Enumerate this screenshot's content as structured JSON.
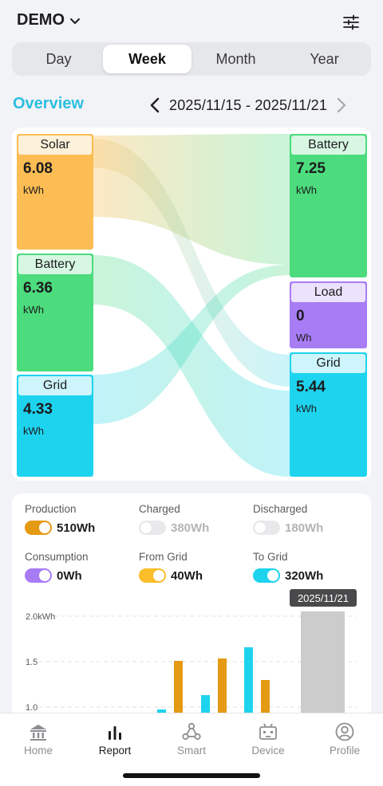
{
  "header": {
    "site_name": "DEMO",
    "site_dropdown_icon": "chevron-down-icon",
    "settings_icon": "sliders-icon"
  },
  "tabs": [
    {
      "label": "Day",
      "active": false
    },
    {
      "label": "Week",
      "active": true
    },
    {
      "label": "Month",
      "active": false
    },
    {
      "label": "Year",
      "active": false
    }
  ],
  "overview": {
    "title": "Overview",
    "date_range": "2025/11/15 - 2025/11/21",
    "prev_icon": "chevron-left-icon",
    "next_icon": "chevron-right-icon"
  },
  "sankey": {
    "sources": [
      {
        "label": "Solar",
        "value": "6.08",
        "unit": "kWh",
        "color": "#fbbd54"
      },
      {
        "label": "Battery",
        "value": "6.36",
        "unit": "kWh",
        "color": "#4cdb7d"
      },
      {
        "label": "Grid",
        "value": "4.33",
        "unit": "kWh",
        "color": "#1ed3ee"
      }
    ],
    "targets": [
      {
        "label": "Battery",
        "value": "7.25",
        "unit": "kWh",
        "color": "#4cdb7d"
      },
      {
        "label": "Load",
        "value": "0",
        "unit": "Wh",
        "color": "#a87cf5"
      },
      {
        "label": "Grid",
        "value": "5.44",
        "unit": "kWh",
        "color": "#1ed3ee"
      }
    ]
  },
  "stats": [
    {
      "name": "Production",
      "value": "510Wh",
      "enabled": true,
      "color": "#e59a14"
    },
    {
      "name": "Charged",
      "value": "380Wh",
      "enabled": false,
      "color": "#e9e9eb"
    },
    {
      "name": "Discharged",
      "value": "180Wh",
      "enabled": false,
      "color": "#e9e9eb"
    },
    {
      "name": "Consumption",
      "value": "0Wh",
      "enabled": true,
      "color": "#a87cf5"
    },
    {
      "name": "From Grid",
      "value": "40Wh",
      "enabled": true,
      "color": "#fbbd2a"
    },
    {
      "name": "To Grid",
      "value": "320Wh",
      "enabled": true,
      "color": "#1ed3ee"
    }
  ],
  "chart_data": {
    "type": "bar",
    "y_tick_labels": [
      "2.0kWh",
      "1.5",
      "1.0"
    ],
    "tooltip": "2025/11/21",
    "grid": true,
    "series": [
      {
        "name": "From Grid",
        "color": "#e59a14"
      },
      {
        "name": "To Grid",
        "color": "#1ed3ee"
      }
    ]
  },
  "bottom_nav": [
    {
      "label": "Home",
      "icon": "home-icon",
      "active": false
    },
    {
      "label": "Report",
      "icon": "report-icon",
      "active": true
    },
    {
      "label": "Smart",
      "icon": "smart-icon",
      "active": false
    },
    {
      "label": "Device",
      "icon": "device-icon",
      "active": false
    },
    {
      "label": "Profile",
      "icon": "profile-icon",
      "active": false
    }
  ]
}
